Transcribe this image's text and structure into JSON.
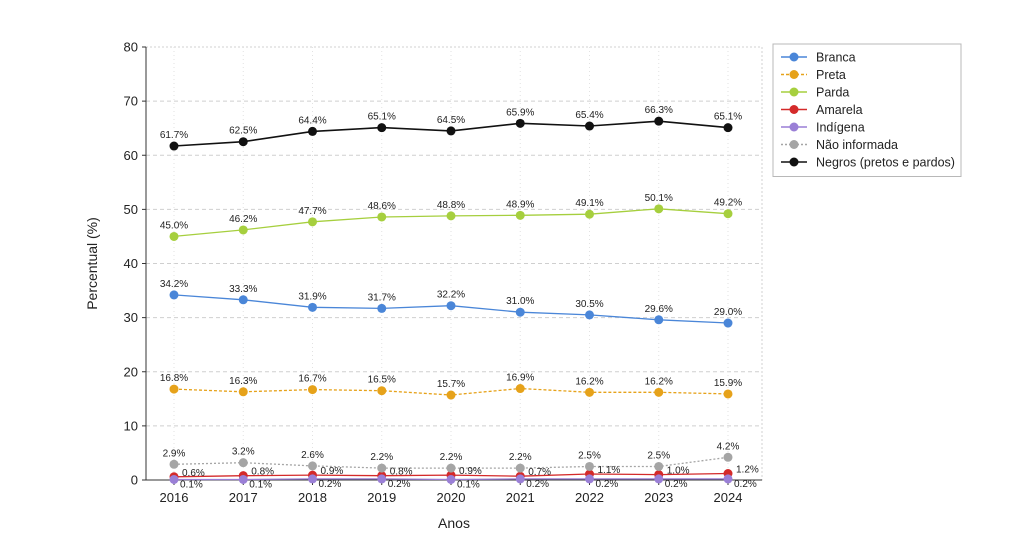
{
  "chart_data": {
    "type": "line",
    "x": [
      "2016",
      "2017",
      "2018",
      "2019",
      "2020",
      "2021",
      "2022",
      "2023",
      "2024"
    ],
    "xlabel": "Anos",
    "ylabel": "Percentual (%)",
    "ylim": [
      0,
      80
    ],
    "yticks": [
      "0",
      "10",
      "20",
      "30",
      "40",
      "50",
      "60",
      "70",
      "80"
    ],
    "grid": true,
    "legend_position": "top-right",
    "series": [
      {
        "name": "Branca",
        "color": "#4a86d8",
        "values": [
          34.2,
          33.3,
          31.9,
          31.7,
          32.2,
          31.0,
          30.5,
          29.6,
          29.0
        ],
        "labels": [
          "34.2%",
          "33.3%",
          "31.9%",
          "31.7%",
          "32.2%",
          "31.0%",
          "30.5%",
          "29.6%",
          "29.0%"
        ]
      },
      {
        "name": "Preta",
        "color": "#e6a21a",
        "values": [
          16.8,
          16.3,
          16.7,
          16.5,
          15.7,
          16.9,
          16.2,
          16.2,
          15.9
        ],
        "labels": [
          "16.8%",
          "16.3%",
          "16.7%",
          "16.5%",
          "15.7%",
          "16.9%",
          "16.2%",
          "16.2%",
          "15.9%"
        ]
      },
      {
        "name": "Parda",
        "color": "#a6cf3e",
        "values": [
          45.0,
          46.2,
          47.7,
          48.6,
          48.8,
          48.9,
          49.1,
          50.1,
          49.2
        ],
        "labels": [
          "45.0%",
          "46.2%",
          "47.7%",
          "48.6%",
          "48.8%",
          "48.9%",
          "49.1%",
          "50.1%",
          "49.2%"
        ]
      },
      {
        "name": "Amarela",
        "color": "#d42a2a",
        "values": [
          0.6,
          0.8,
          0.9,
          0.8,
          0.9,
          0.7,
          1.1,
          1.0,
          1.2
        ],
        "labels": [
          "0.6%",
          "0.8%",
          "0.9%",
          "0.8%",
          "0.9%",
          "0.7%",
          "1.1%",
          "1.0%",
          "1.2%"
        ]
      },
      {
        "name": "Indígena",
        "color": "#9a7fd6",
        "values": [
          0.1,
          0.1,
          0.2,
          0.2,
          0.1,
          0.2,
          0.2,
          0.2,
          0.2
        ],
        "labels": [
          "0.1%",
          "0.1%",
          "0.2%",
          "0.2%",
          "0.1%",
          "0.2%",
          "0.2%",
          "0.2%",
          "0.2%"
        ]
      },
      {
        "name": "Não informada",
        "color": "#a5a5a5",
        "values": [
          2.9,
          3.2,
          2.6,
          2.2,
          2.2,
          2.2,
          2.5,
          2.5,
          4.2
        ],
        "labels": [
          "2.9%",
          "3.2%",
          "2.6%",
          "2.2%",
          "2.2%",
          "2.2%",
          "2.5%",
          "2.5%",
          "4.2%"
        ]
      },
      {
        "name": "Negros (pretos e pardos)",
        "color": "#111111",
        "values": [
          61.7,
          62.5,
          64.4,
          65.1,
          64.5,
          65.9,
          65.4,
          66.3,
          65.1
        ],
        "labels": [
          "61.7%",
          "62.5%",
          "64.4%",
          "65.1%",
          "64.5%",
          "65.9%",
          "65.4%",
          "66.3%",
          "65.1%"
        ]
      }
    ]
  }
}
